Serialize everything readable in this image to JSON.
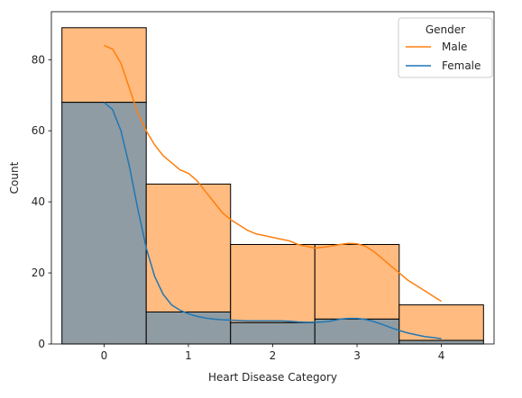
{
  "chart_data": {
    "type": "bar",
    "xlabel": "Heart Disease Category",
    "ylabel": "Count",
    "xlim": [
      -0.625,
      4.625
    ],
    "ylim": [
      0,
      93.5
    ],
    "x_ticks": [
      0,
      1,
      2,
      3,
      4
    ],
    "y_ticks": [
      0,
      20,
      40,
      60,
      80
    ],
    "bins": [
      [
        -0.5,
        0.5
      ],
      [
        0.5,
        1.5
      ],
      [
        1.5,
        2.5
      ],
      [
        2.5,
        3.5
      ],
      [
        3.5,
        4.5
      ]
    ],
    "legend": {
      "title": "Gender",
      "position": "top-right"
    },
    "series": [
      {
        "name": "Male",
        "color": "#ff7f0e",
        "bar_fill": "#ffbb80",
        "values": [
          89,
          45,
          28,
          28,
          11
        ],
        "kde": [
          [
            0,
            84
          ],
          [
            0.1,
            83
          ],
          [
            0.2,
            79
          ],
          [
            0.3,
            72
          ],
          [
            0.4,
            65
          ],
          [
            0.5,
            60
          ],
          [
            0.6,
            56
          ],
          [
            0.7,
            53
          ],
          [
            0.8,
            51
          ],
          [
            0.9,
            49
          ],
          [
            1.0,
            48
          ],
          [
            1.1,
            46
          ],
          [
            1.2,
            43
          ],
          [
            1.3,
            40
          ],
          [
            1.4,
            37
          ],
          [
            1.5,
            35
          ],
          [
            1.6,
            33.5
          ],
          [
            1.7,
            32
          ],
          [
            1.8,
            31
          ],
          [
            1.9,
            30.5
          ],
          [
            2.0,
            30
          ],
          [
            2.1,
            29.5
          ],
          [
            2.2,
            29
          ],
          [
            2.3,
            28
          ],
          [
            2.4,
            27.5
          ],
          [
            2.5,
            27
          ],
          [
            2.6,
            27.2
          ],
          [
            2.7,
            27.6
          ],
          [
            2.8,
            28
          ],
          [
            2.9,
            28.3
          ],
          [
            3.0,
            28.2
          ],
          [
            3.1,
            27.5
          ],
          [
            3.2,
            26
          ],
          [
            3.3,
            24
          ],
          [
            3.4,
            22
          ],
          [
            3.5,
            20
          ],
          [
            3.6,
            18
          ],
          [
            3.7,
            16.5
          ],
          [
            3.8,
            15
          ],
          [
            3.9,
            13.5
          ],
          [
            4.0,
            12
          ]
        ]
      },
      {
        "name": "Female",
        "color": "#1f77b4",
        "bar_fill": "#8f9ca3",
        "values": [
          68,
          9,
          6,
          7,
          1
        ],
        "kde": [
          [
            0,
            68
          ],
          [
            0.1,
            66
          ],
          [
            0.2,
            60
          ],
          [
            0.3,
            50
          ],
          [
            0.4,
            38
          ],
          [
            0.5,
            27
          ],
          [
            0.6,
            19
          ],
          [
            0.7,
            14
          ],
          [
            0.8,
            11
          ],
          [
            0.9,
            9.5
          ],
          [
            1.0,
            8.5
          ],
          [
            1.1,
            7.8
          ],
          [
            1.2,
            7.3
          ],
          [
            1.3,
            7
          ],
          [
            1.4,
            6.8
          ],
          [
            1.5,
            6.7
          ],
          [
            1.6,
            6.6
          ],
          [
            1.7,
            6.5
          ],
          [
            1.8,
            6.5
          ],
          [
            1.9,
            6.5
          ],
          [
            2.0,
            6.5
          ],
          [
            2.1,
            6.5
          ],
          [
            2.2,
            6.4
          ],
          [
            2.3,
            6.2
          ],
          [
            2.4,
            6.1
          ],
          [
            2.5,
            6.1
          ],
          [
            2.6,
            6.2
          ],
          [
            2.7,
            6.5
          ],
          [
            2.8,
            7
          ],
          [
            2.9,
            7.2
          ],
          [
            3.0,
            7.2
          ],
          [
            3.1,
            6.9
          ],
          [
            3.2,
            6.3
          ],
          [
            3.3,
            5.5
          ],
          [
            3.4,
            4.6
          ],
          [
            3.5,
            3.8
          ],
          [
            3.6,
            3.1
          ],
          [
            3.7,
            2.6
          ],
          [
            3.8,
            2.1
          ],
          [
            3.9,
            1.8
          ],
          [
            4.0,
            1.5
          ]
        ]
      }
    ],
    "overlap_fill": "#8f9ca3",
    "edge_color": "#000000"
  }
}
